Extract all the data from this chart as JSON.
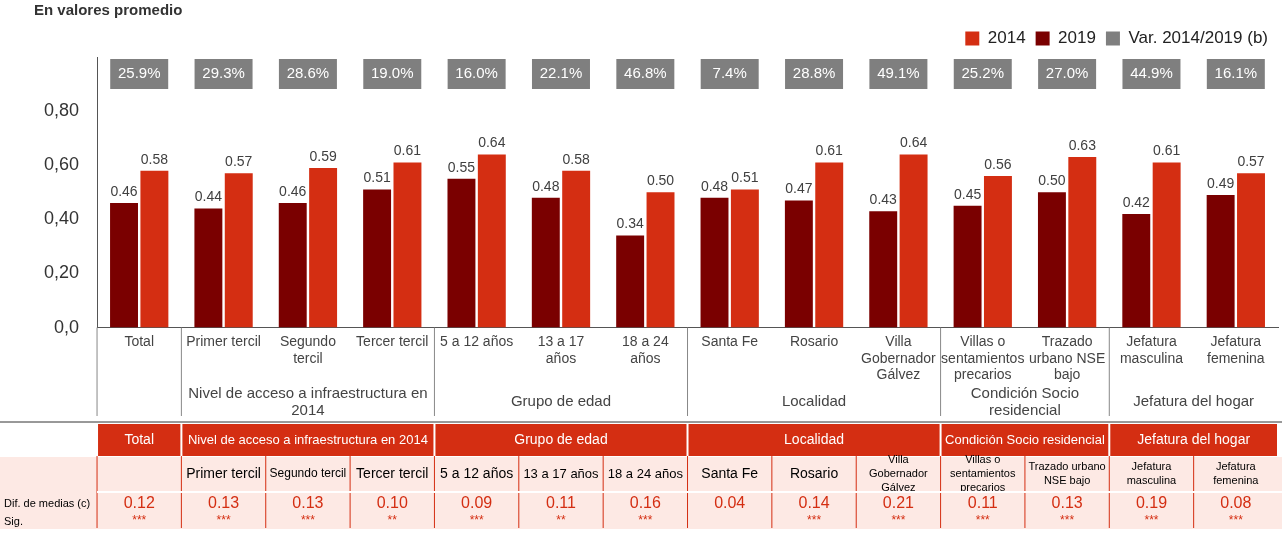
{
  "chart_data": {
    "type": "bar",
    "title": "En valores promedio",
    "categories": [
      "Total",
      "Primer tercil",
      "Segundo tercil",
      "Tercer tercil",
      "5 a 12 años",
      "13 a 17 años",
      "18 a 24 años",
      "Santa Fe",
      "Rosario",
      "Villa Gobernador Gálvez",
      "Villas o sentamientos precarios",
      "Trazado urbano NSE bajo",
      "Jefatura masculina",
      "Jefatura femenina"
    ],
    "series": [
      {
        "name": "2014",
        "color": "#d42e12",
        "values": [
          0.58,
          0.57,
          0.59,
          0.61,
          0.64,
          0.58,
          0.5,
          0.51,
          0.61,
          0.64,
          0.56,
          0.63,
          0.61,
          0.57
        ],
        "value_labels": [
          "0.58",
          "0.57",
          "0.59",
          "0.61",
          "0.64",
          "0.58",
          "0.50",
          "0.51",
          "0.61",
          "0.64",
          "0.56",
          "0.63",
          "0.61",
          "0.57"
        ]
      },
      {
        "name": "2019",
        "color": "#7a0000",
        "values": [
          0.46,
          0.44,
          0.46,
          0.51,
          0.55,
          0.48,
          0.34,
          0.48,
          0.47,
          0.43,
          0.45,
          0.5,
          0.42,
          0.49
        ],
        "value_labels": [
          "0.46",
          "0.44",
          "0.46",
          "0.51",
          "0.55",
          "0.48",
          "0.34",
          "0.48",
          "0.47",
          "0.43",
          "0.45",
          "0.50",
          "0.42",
          "0.49"
        ]
      },
      {
        "name": "Var. 2014/2019 (b)",
        "color": "#7f7f7f",
        "values": [
          null,
          null,
          null,
          null,
          null,
          null,
          null,
          null,
          null,
          null,
          null,
          null,
          null,
          null
        ]
      }
    ],
    "ylim": [
      0,
      1.0
    ],
    "yticks": [
      {
        "value": 0,
        "label": "0,0"
      },
      {
        "value": 0.2,
        "label": "0,20"
      },
      {
        "value": 0.4,
        "label": "0,40"
      },
      {
        "value": 0.6,
        "label": "0,60"
      },
      {
        "value": 0.8,
        "label": "0,80"
      }
    ],
    "grid": false,
    "legend": "top right",
    "annotations": [
      "25.9%",
      "29.3%",
      "28.6%",
      "19.0%",
      "16.0%",
      "22.1%",
      "46.8%",
      "7.4%",
      "28.8%",
      "49.1%",
      "25.2%",
      "27.0%",
      "44.9%",
      "16.1%",
      "0.12",
      "0.13",
      "0.13",
      "0.10",
      "0.09",
      "0.11",
      "0.16",
      "0.04",
      "0.14",
      "0.21",
      "0.11",
      "0.13",
      "0.19",
      "0.08",
      "***",
      "***",
      "***",
      "**",
      "***",
      "**",
      "***",
      "***",
      "***",
      "***",
      "***",
      "***",
      "***",
      "Nivel de acceso a infraestructura en 2014",
      "Grupo de edad",
      "Localidad",
      "Condición Socio residencial",
      "Jefatura del hogar",
      "Dif. de medias (c)",
      "Sig."
    ]
  }
}
